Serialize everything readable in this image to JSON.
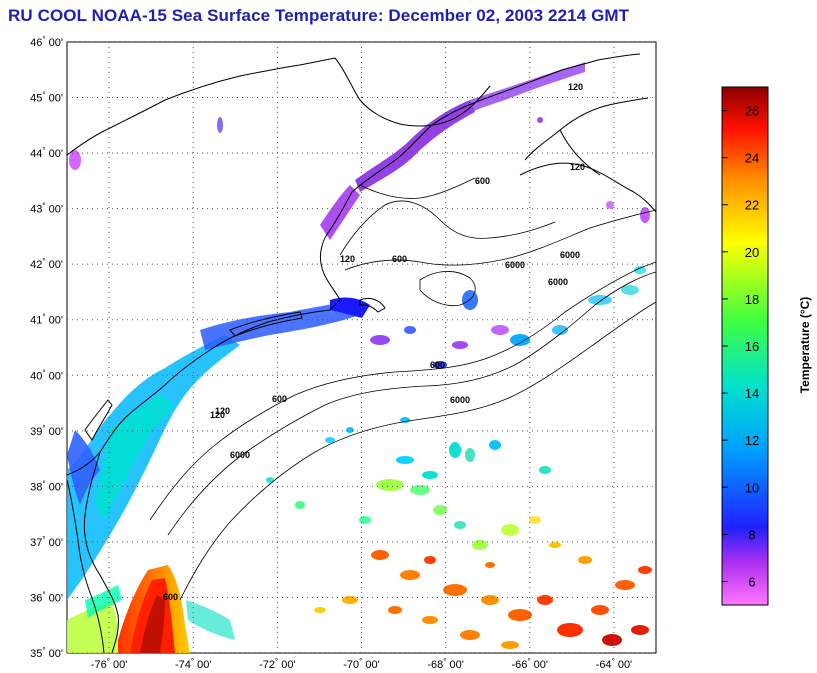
{
  "title": "RU COOL  NOAA-15  Sea Surface Temperature:  December 02, 2003 2214 GMT",
  "map": {
    "lon_range": [
      -77.0,
      -63.0
    ],
    "lat_range": [
      35.0,
      46.0
    ],
    "lat_ticks": [
      {
        "deg": "46",
        "min": "00'"
      },
      {
        "deg": "45",
        "min": "00'"
      },
      {
        "deg": "44",
        "min": "00'"
      },
      {
        "deg": "43",
        "min": "00'"
      },
      {
        "deg": "42",
        "min": "00'"
      },
      {
        "deg": "41",
        "min": "00'"
      },
      {
        "deg": "40",
        "min": "00'"
      },
      {
        "deg": "39",
        "min": "00'"
      },
      {
        "deg": "38",
        "min": "00'"
      },
      {
        "deg": "37",
        "min": "00'"
      },
      {
        "deg": "36",
        "min": "00'"
      },
      {
        "deg": "35",
        "min": "00'"
      }
    ],
    "lon_ticks": [
      {
        "deg": "-76",
        "min": "00'"
      },
      {
        "deg": "-74",
        "min": "00'"
      },
      {
        "deg": "-72",
        "min": "00'"
      },
      {
        "deg": "-70",
        "min": "00'"
      },
      {
        "deg": "-68",
        "min": "00'"
      },
      {
        "deg": "-66",
        "min": "00'"
      },
      {
        "deg": "-64",
        "min": "00'"
      }
    ],
    "isobath_labels": [
      "120",
      "600",
      "6000",
      "600",
      "6000",
      "120",
      "600",
      "6000",
      "120",
      "6000",
      "600",
      "120",
      "6000",
      "600",
      "120"
    ],
    "grid": "dotted",
    "land_color": "#ffffff",
    "cloud_color": "#ffffff"
  },
  "colorbar": {
    "title": "Temperature (°C)",
    "range": [
      5.0,
      27.0
    ],
    "tick_labels": [
      "26",
      "24",
      "22",
      "20",
      "18",
      "16",
      "14",
      "12",
      "10",
      "8",
      "6"
    ],
    "colors": [
      "#ff66ff",
      "#a020f0",
      "#0000ff",
      "#00bfff",
      "#00ffcc",
      "#00ff00",
      "#ffff00",
      "#ffa500",
      "#ff0000",
      "#8b0000"
    ]
  }
}
